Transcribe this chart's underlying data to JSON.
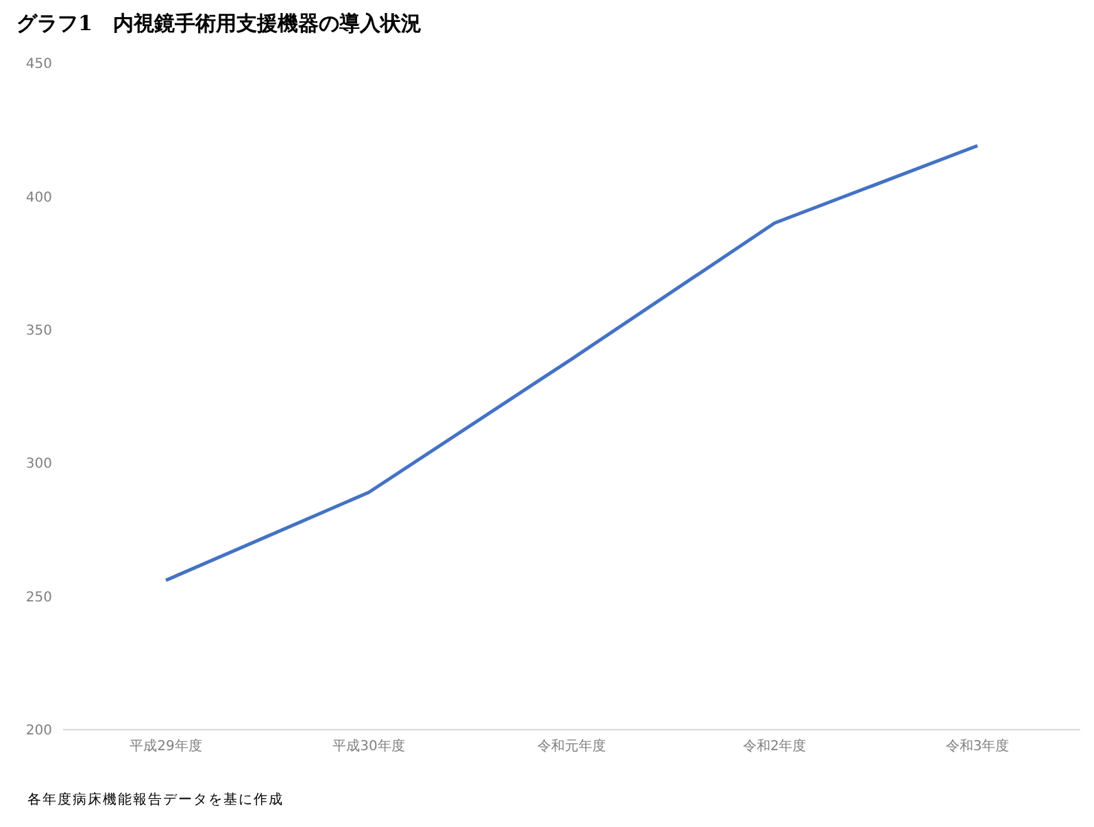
{
  "chart_data": {
    "type": "line",
    "title": "グラフ1　内視鏡手術用支援機器の導入状況",
    "categories": [
      "平成29年度",
      "平成30年度",
      "令和元年度",
      "令和2年度",
      "令和3年度"
    ],
    "series": [
      {
        "color": "#4472c4",
        "values": [
          256,
          289,
          339,
          390,
          419
        ]
      }
    ],
    "ylim": [
      200,
      450
    ],
    "yticks": [
      200,
      250,
      300,
      350,
      400,
      450
    ],
    "grid": false,
    "legend": false,
    "marker": "none",
    "line_style": "solid",
    "annotations": [
      "各年度病床機能報告データを基に作成"
    ]
  }
}
